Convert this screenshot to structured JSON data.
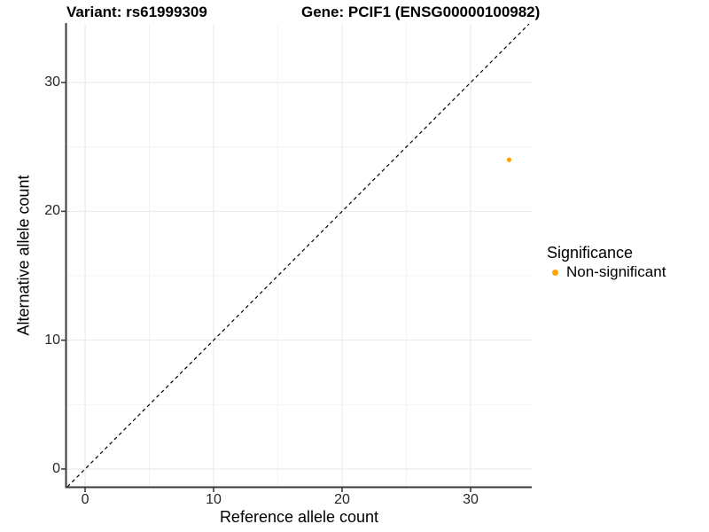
{
  "figure": {
    "title_variant": "Variant: rs61999309",
    "title_gene": "Gene: PCIF1 (ENSG00000100982)"
  },
  "legend": {
    "title": "Significance",
    "items": [
      {
        "label": "Non-significant",
        "color": "#FFA500",
        "marker": "circle"
      }
    ]
  },
  "chart_data": {
    "type": "scatter",
    "title": "Variant: rs61999309   Gene: PCIF1 (ENSG00000100982)",
    "xlabel": "Reference allele count",
    "ylabel": "Alternative allele count",
    "xlim": [
      -1.45,
      34.76
    ],
    "ylim": [
      -1.38,
      34.55
    ],
    "x_ticks": [
      0,
      10,
      20,
      30
    ],
    "y_ticks": [
      0,
      10,
      20,
      30
    ],
    "x_minor_ticks": [
      5,
      15,
      25
    ],
    "y_minor_ticks": [
      5,
      15,
      25
    ],
    "grid": "major+minor",
    "legend_position": "right",
    "series": [
      {
        "name": "Non-significant",
        "color": "#FFA500",
        "points": [
          {
            "x": 33,
            "y": 24
          }
        ]
      }
    ],
    "reference_line": {
      "kind": "identity",
      "slope": 1,
      "intercept": 0,
      "style": "dashed",
      "color": "#000000"
    }
  },
  "colors": {
    "background": "#ffffff",
    "axis_line": "#3a3a3a",
    "tick_mark": "#333333",
    "grid_major": "#e7e7e7",
    "grid_minor": "#f3f3f3",
    "point_orange": "#FFA500"
  }
}
